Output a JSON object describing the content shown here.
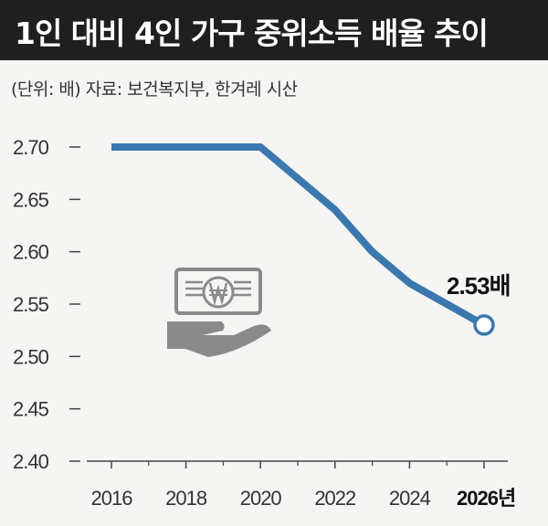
{
  "title": "1인 대비 4인 가구 중위소득 배율 추이",
  "subtitle": "(단위: 배)  자료: 보건복지부, 한겨레 시산",
  "colors": {
    "line": "#3a78ad",
    "title_bg": "#1f1f1f",
    "icon": "#8a8a8a"
  },
  "icon": "money-hand-icon",
  "chart_data": {
    "type": "line",
    "x": [
      2016,
      2018,
      2020,
      2022,
      2023,
      2024,
      2025,
      2026
    ],
    "y": [
      2.7,
      2.7,
      2.7,
      2.64,
      2.6,
      2.57,
      2.55,
      2.53
    ],
    "xticks": [
      "2016",
      "2018",
      "2020",
      "2022",
      "2024",
      "2026년"
    ],
    "yticks": [
      "2.70",
      "2.65",
      "2.60",
      "2.55",
      "2.50",
      "2.45",
      "2.40"
    ],
    "ylim": [
      2.4,
      2.7
    ],
    "xlim": [
      2016,
      2026
    ],
    "annotation": {
      "x": 2026,
      "y": 2.53,
      "text": "2.53배"
    },
    "grid": false
  }
}
